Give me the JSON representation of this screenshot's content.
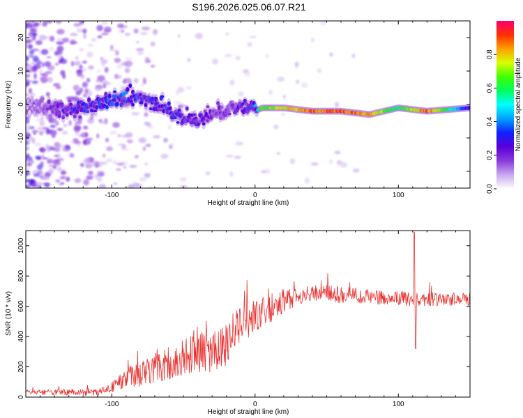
{
  "title": "S196.2026.025.06.07.R21",
  "colors": {
    "snr_line": "#e8302e",
    "colormap": [
      "#ffffff",
      "#c9a8f0",
      "#8a3ad9",
      "#5a00d8",
      "#1020ff",
      "#00a0ff",
      "#00ffff",
      "#00ff60",
      "#40ff00",
      "#d8ff00",
      "#ffa000",
      "#ff3000",
      "#ff0070"
    ]
  },
  "chart_data": [
    {
      "type": "heatmap",
      "xlabel": "Height of straight line (km)",
      "ylabel": "Frequency (Hz)",
      "xlim": [
        -160,
        150
      ],
      "ylim": [
        -25,
        25
      ],
      "xticks": [
        -100,
        0,
        100
      ],
      "yticks": [
        -20,
        -10,
        0,
        10,
        20
      ],
      "colorbar": {
        "label": "Normalized spectral amplitude",
        "range": [
          0,
          1
        ],
        "ticks": [
          "0.0",
          "0.2",
          "0.4",
          "0.6",
          "0.8"
        ]
      },
      "trace": {
        "description": "signal ridge frequency vs height",
        "x": [
          -160,
          -130,
          -110,
          -90,
          -75,
          -60,
          -50,
          -40,
          -30,
          -20,
          -10,
          0,
          5,
          20,
          40,
          60,
          80,
          90,
          100,
          120,
          150
        ],
        "freq": [
          0,
          -2,
          0,
          2,
          2,
          -2,
          -4,
          -5,
          -3,
          -2,
          -1,
          -2,
          -1,
          -1,
          -2,
          -2,
          -3,
          -2,
          -1,
          -2,
          -1
        ],
        "amplitude": [
          0.05,
          0.3,
          0.35,
          0.4,
          0.35,
          0.35,
          0.3,
          0.3,
          0.2,
          0.2,
          0.25,
          0.4,
          0.7,
          0.8,
          0.95,
          0.95,
          0.9,
          0.75,
          0.6,
          0.95,
          0.3
        ]
      }
    },
    {
      "type": "line",
      "xlabel": "Height of straight line (km)",
      "ylabel": "SNR (10 * v/v)",
      "xlim": [
        -160,
        150
      ],
      "ylim": [
        0,
        1100
      ],
      "xticks": [
        -100,
        0,
        100
      ],
      "yticks": [
        0,
        200,
        400,
        600,
        800,
        1000
      ],
      "envelope": {
        "x": [
          -160,
          -110,
          -100,
          -90,
          -80,
          -70,
          -60,
          -50,
          -40,
          -30,
          -20,
          -15,
          -10,
          0,
          10,
          20,
          30,
          40,
          50,
          60,
          70,
          80,
          90,
          100,
          108,
          111,
          114,
          120,
          130,
          150
        ],
        "base": [
          30,
          30,
          60,
          120,
          150,
          180,
          210,
          250,
          280,
          290,
          330,
          420,
          470,
          520,
          570,
          630,
          670,
          680,
          680,
          670,
          670,
          660,
          650,
          650,
          640,
          650,
          640,
          640,
          640,
          640
        ],
        "noise": [
          15,
          20,
          30,
          60,
          80,
          90,
          100,
          110,
          120,
          130,
          140,
          120,
          110,
          100,
          90,
          70,
          60,
          50,
          50,
          50,
          50,
          45,
          40,
          40,
          40,
          40,
          40,
          40,
          40,
          40
        ]
      },
      "spikes": [
        {
          "x": 111,
          "y": 1090
        },
        {
          "x": 112,
          "y": 320
        }
      ]
    }
  ]
}
